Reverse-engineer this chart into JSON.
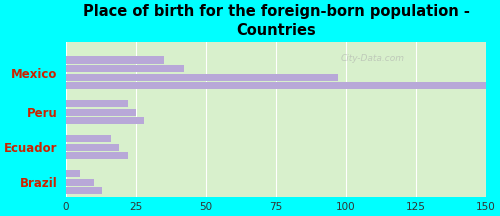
{
  "title": "Place of birth for the foreign-born population -\nCountries",
  "background_color": "#00FFFF",
  "plot_bg": "#d8f0cc",
  "bar_color": "#b8a8d8",
  "xlim": [
    0,
    150
  ],
  "xticks": [
    0,
    25,
    50,
    75,
    100,
    125,
    150
  ],
  "categories": [
    "Mexico",
    "Peru",
    "Ecuador",
    "Brazil"
  ],
  "bars": {
    "Mexico": [
      155,
      97,
      42,
      35
    ],
    "Peru": [
      28,
      25,
      22
    ],
    "Ecuador": [
      22,
      19,
      16
    ],
    "Brazil": [
      13,
      10,
      5
    ]
  },
  "label_color": "#cc2200",
  "label_fontsize": 8.5,
  "title_fontsize": 10.5,
  "watermark": "City-Data.com"
}
